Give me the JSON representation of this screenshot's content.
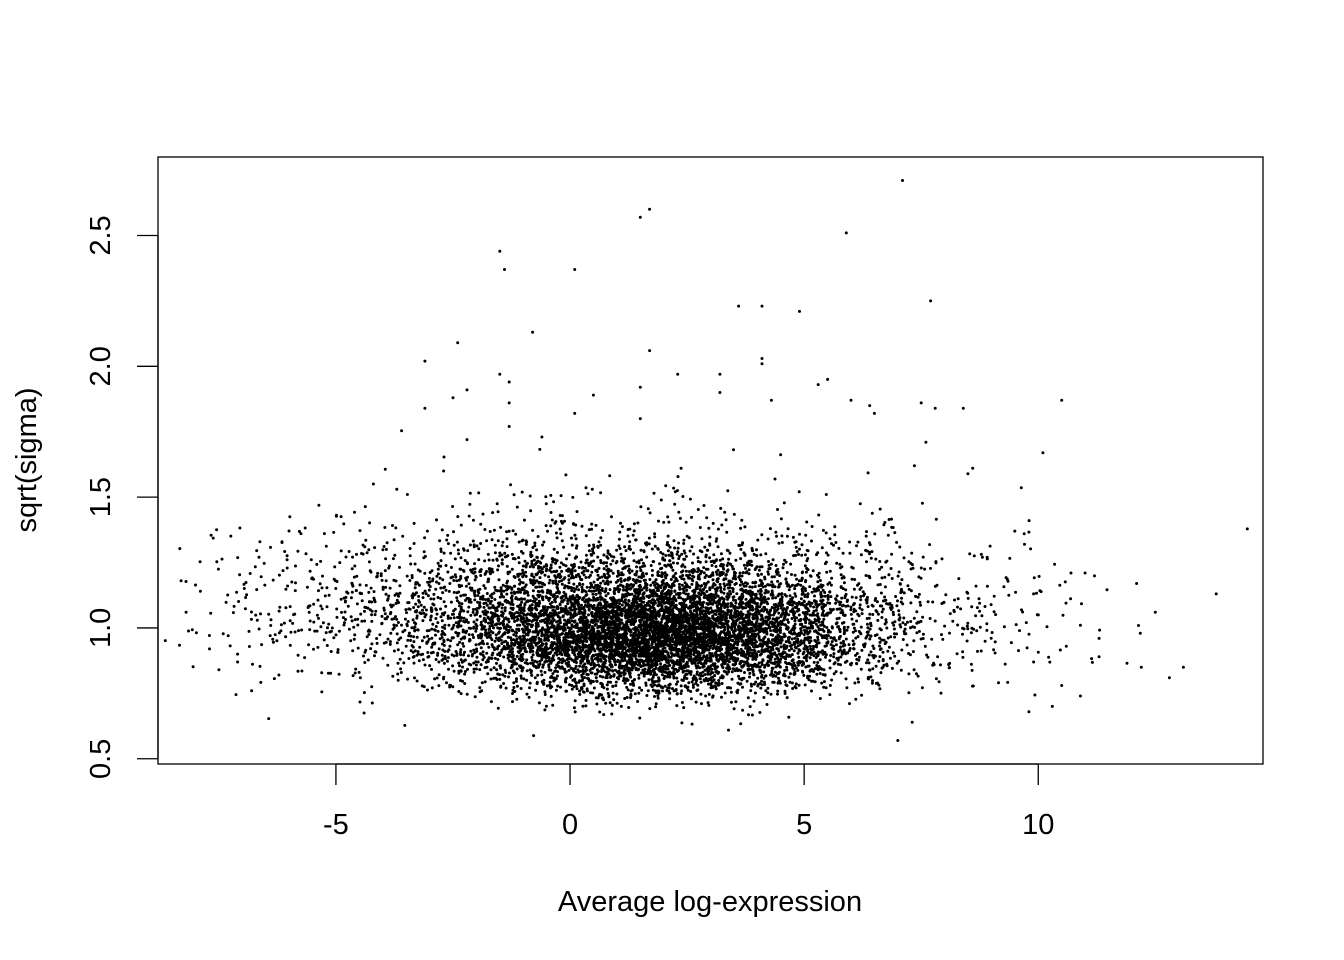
{
  "chart_data": {
    "type": "scatter",
    "title": "",
    "xlabel": "Average log-expression",
    "ylabel": "sqrt(sigma)",
    "xlim": [
      -8.8,
      14.8
    ],
    "ylim": [
      0.48,
      2.8
    ],
    "xticks": [
      -5,
      0,
      5,
      10
    ],
    "yticks": [
      0.5,
      1.0,
      1.5,
      2.0,
      2.5
    ],
    "xtick_labels": [
      "-5",
      "0",
      "5",
      "10"
    ],
    "ytick_labels": [
      "0.5",
      "1.0",
      "1.5",
      "2.0",
      "2.5"
    ],
    "grid": false,
    "legend": "none",
    "point_color": "#000000",
    "cloud": {
      "n_points": 9000,
      "components": [
        {
          "weight": 0.55,
          "x_mean": 2.0,
          "x_sd": 2.0,
          "y_mean": 0.93,
          "y_sd": 0.13
        },
        {
          "weight": 0.3,
          "x_mean": 1.5,
          "x_sd": 3.2,
          "y_mean": 1.02,
          "y_sd": 0.17
        },
        {
          "weight": 0.15,
          "x_mean": 0.5,
          "x_sd": 4.2,
          "y_mean": 1.05,
          "y_sd": 0.2
        }
      ],
      "y_min": 0.58
    },
    "points": [
      {
        "x": 7.1,
        "y": 2.71
      },
      {
        "x": 1.7,
        "y": 2.6
      },
      {
        "x": 1.5,
        "y": 2.57
      },
      {
        "x": 5.9,
        "y": 2.51
      },
      {
        "x": -1.5,
        "y": 2.44
      },
      {
        "x": -1.4,
        "y": 2.37
      },
      {
        "x": 0.1,
        "y": 2.37
      },
      {
        "x": 7.7,
        "y": 2.25
      },
      {
        "x": 3.6,
        "y": 2.23
      },
      {
        "x": 4.1,
        "y": 2.23
      },
      {
        "x": 4.9,
        "y": 2.21
      },
      {
        "x": -0.8,
        "y": 2.13
      },
      {
        "x": -2.4,
        "y": 2.09
      },
      {
        "x": 1.7,
        "y": 2.06
      },
      {
        "x": 4.1,
        "y": 2.03
      },
      {
        "x": -3.1,
        "y": 2.02
      },
      {
        "x": 4.1,
        "y": 2.01
      },
      {
        "x": -1.5,
        "y": 1.97
      },
      {
        "x": 2.3,
        "y": 1.97
      },
      {
        "x": 3.2,
        "y": 1.97
      },
      {
        "x": 5.5,
        "y": 1.95
      },
      {
        "x": -1.3,
        "y": 1.94
      },
      {
        "x": 5.3,
        "y": 1.93
      },
      {
        "x": 1.5,
        "y": 1.92
      },
      {
        "x": -2.2,
        "y": 1.91
      },
      {
        "x": 3.2,
        "y": 1.9
      },
      {
        "x": 0.5,
        "y": 1.89
      },
      {
        "x": -2.5,
        "y": 1.88
      },
      {
        "x": 4.3,
        "y": 1.87
      },
      {
        "x": 6.0,
        "y": 1.87
      },
      {
        "x": 10.5,
        "y": 1.87
      },
      {
        "x": 7.5,
        "y": 1.86
      },
      {
        "x": -1.3,
        "y": 1.86
      },
      {
        "x": 6.4,
        "y": 1.85
      },
      {
        "x": -3.1,
        "y": 1.84
      },
      {
        "x": 8.4,
        "y": 1.84
      },
      {
        "x": 7.8,
        "y": 1.84
      },
      {
        "x": 6.5,
        "y": 1.82
      },
      {
        "x": 0.1,
        "y": 1.82
      },
      {
        "x": 1.5,
        "y": 1.8
      },
      {
        "x": -1.3,
        "y": 1.77
      },
      {
        "x": -2.2,
        "y": 1.72
      },
      {
        "x": 7.6,
        "y": 1.71
      },
      {
        "x": -0.6,
        "y": 1.73
      },
      {
        "x": 10.1,
        "y": 1.67
      },
      {
        "x": 8.6,
        "y": 1.61
      },
      {
        "x": -2.7,
        "y": 1.6
      },
      {
        "x": -4.2,
        "y": 1.55
      },
      {
        "x": -3.7,
        "y": 1.53
      },
      {
        "x": 9.5,
        "y": 1.37
      },
      {
        "x": 9.7,
        "y": 1.36
      },
      {
        "x": 12.1,
        "y": 1.17
      },
      {
        "x": 13.8,
        "y": 1.13
      },
      {
        "x": 12.5,
        "y": 1.06
      },
      {
        "x": -8.2,
        "y": 1.06
      },
      {
        "x": -7.7,
        "y": 0.92
      },
      {
        "x": -7.1,
        "y": 0.9
      },
      {
        "x": -7.1,
        "y": 0.87
      },
      {
        "x": -7.5,
        "y": 0.84
      },
      {
        "x": -6.8,
        "y": 0.76
      },
      {
        "x": 13.1,
        "y": 0.85
      },
      {
        "x": 12.2,
        "y": 0.85
      },
      {
        "x": 12.8,
        "y": 0.81
      },
      {
        "x": 11.3,
        "y": 0.96
      },
      {
        "x": 11.3,
        "y": 0.89
      },
      {
        "x": 10.5,
        "y": 0.78
      },
      {
        "x": 10.9,
        "y": 0.74
      },
      {
        "x": 10.3,
        "y": 0.7
      },
      {
        "x": 9.8,
        "y": 0.68
      },
      {
        "x": 7.0,
        "y": 0.57
      },
      {
        "x": 11.0,
        "y": 1.21
      },
      {
        "x": 10.7,
        "y": 1.21
      },
      {
        "x": 9.9,
        "y": 1.13
      },
      {
        "x": 10.0,
        "y": 1.05
      },
      {
        "x": 10.9,
        "y": 1.01
      },
      {
        "x": 9.6,
        "y": 0.99
      },
      {
        "x": 9.9,
        "y": 0.87
      },
      {
        "x": 10.6,
        "y": 0.93
      }
    ]
  }
}
